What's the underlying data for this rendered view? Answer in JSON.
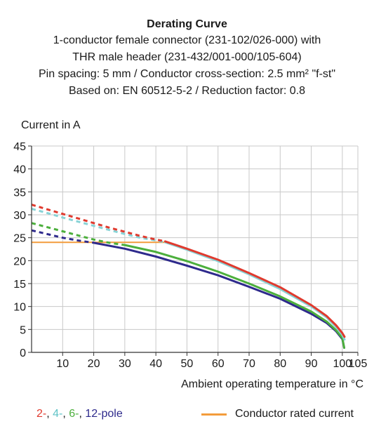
{
  "chart_data": {
    "type": "line",
    "title": "Derating Curve",
    "subtitle_lines": [
      "1-conductor female connector (231-102/026-000) with",
      "THR male header (231-432/001-000/105-604)",
      "Pin spacing: 5 mm / Conductor cross-section: 2.5 mm² \"f-st\"",
      "Based on: EN 60512-5-2 / Reduction factor: 0.8"
    ],
    "ylabel": "Current in A",
    "xlabel": "Ambient operating temperature in °C",
    "xlim": [
      0,
      105
    ],
    "ylim": [
      0,
      45
    ],
    "xticks": [
      10,
      20,
      30,
      40,
      50,
      60,
      70,
      80,
      90,
      100,
      105
    ],
    "yticks": [
      0,
      5,
      10,
      15,
      20,
      25,
      30,
      35,
      40,
      45
    ],
    "grid": true,
    "series": [
      {
        "name": "2-",
        "color": "#e03a2e",
        "dashed_x": [
          0,
          5,
          10,
          15,
          20,
          25,
          30,
          35,
          40,
          43
        ],
        "dashed_y": [
          32.2,
          31.2,
          30.2,
          29.2,
          28.2,
          27.2,
          26.3,
          25.4,
          24.6,
          24.2
        ],
        "solid_x": [
          43,
          50,
          60,
          70,
          80,
          90,
          95,
          98,
          100,
          100.7
        ],
        "solid_y": [
          24.2,
          22.6,
          20.2,
          17.3,
          14.2,
          10.3,
          7.9,
          5.9,
          4.2,
          3.4
        ]
      },
      {
        "name": "4-",
        "color": "#88d3d6",
        "dashed_x": [
          0,
          5,
          10,
          15,
          20,
          25,
          30,
          35,
          40,
          43
        ],
        "dashed_y": [
          31.3,
          30.4,
          29.4,
          28.5,
          27.6,
          26.7,
          25.8,
          25.0,
          24.4,
          24.0
        ],
        "solid_x": [
          43,
          50,
          60,
          70,
          80,
          90,
          95,
          98,
          100,
          100.7
        ],
        "solid_y": [
          24.0,
          22.4,
          19.9,
          17.0,
          13.8,
          10.0,
          7.6,
          5.5,
          3.8,
          2.8
        ]
      },
      {
        "name": "6-",
        "color": "#4caf3c",
        "dashed_x": [
          0,
          5,
          10,
          15,
          20,
          25,
          30
        ],
        "dashed_y": [
          28.2,
          27.3,
          26.4,
          25.5,
          24.6,
          23.9,
          23.4
        ],
        "solid_x": [
          30,
          40,
          50,
          60,
          70,
          80,
          90,
          95,
          98,
          100,
          100.6
        ],
        "solid_y": [
          23.4,
          21.9,
          19.9,
          17.6,
          15.0,
          12.2,
          8.9,
          6.7,
          4.8,
          3.1,
          1.0
        ]
      },
      {
        "name": "12-pole",
        "color": "#2e2a8c",
        "dashed_x": [
          0,
          5,
          10,
          15,
          20
        ],
        "dashed_y": [
          26.6,
          25.8,
          25.0,
          24.4,
          23.9
        ],
        "solid_x": [
          20,
          30,
          40,
          50,
          60,
          70,
          80,
          90,
          95,
          98,
          100,
          100.6
        ],
        "solid_y": [
          23.9,
          22.6,
          20.9,
          18.9,
          16.8,
          14.3,
          11.7,
          8.4,
          6.4,
          4.6,
          2.9,
          1.0
        ]
      }
    ],
    "rated_current": {
      "name": "Conductor rated current",
      "color": "#f39c3c",
      "x": [
        0,
        43
      ],
      "y": [
        24.0,
        24.0
      ]
    }
  },
  "legend": {
    "left_items": [
      {
        "text": "2-",
        "color": "#e03a2e"
      },
      {
        "text": ", ",
        "color": "#1a1a1a"
      },
      {
        "text": "4-",
        "color": "#5fc3c7"
      },
      {
        "text": ", ",
        "color": "#1a1a1a"
      },
      {
        "text": "6-",
        "color": "#4caf3c"
      },
      {
        "text": ", ",
        "color": "#1a1a1a"
      },
      {
        "text": "12-pole",
        "color": "#2e2a8c"
      }
    ],
    "right_label": "Conductor rated current",
    "right_color": "#f39c3c"
  }
}
